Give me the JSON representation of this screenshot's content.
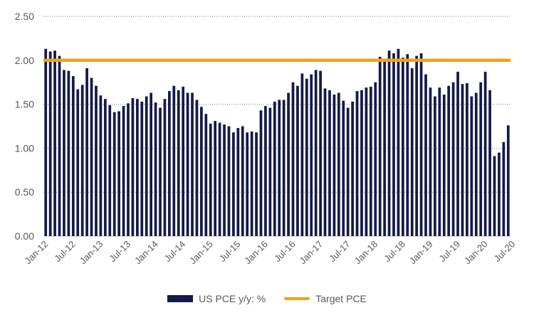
{
  "chart_data": {
    "type": "bar",
    "title": "",
    "xlabel": "",
    "ylabel": "",
    "ylim": [
      0,
      2.5
    ],
    "yticks": [
      "0.00",
      "0.50",
      "1.00",
      "1.50",
      "2.00",
      "2.50"
    ],
    "gridlines": "horizontal-dotted",
    "x_tick_labels": [
      "Jan-12",
      "Jul-12",
      "Jan-13",
      "Jul-13",
      "Jan-14",
      "Jul-14",
      "Jan-15",
      "Jul-15",
      "Jan-16",
      "Jul-16",
      "Jan-17",
      "Jul-17",
      "Jan-18",
      "Jul-18",
      "Jan-19",
      "Jul-19",
      "Jan-20",
      "Jul-20"
    ],
    "x_tick_every_months": 6,
    "start_month": "Jan-12",
    "series": [
      {
        "name": "US PCE y/y: %",
        "kind": "bar",
        "color": "#141a47",
        "values": [
          2.13,
          2.1,
          2.11,
          2.05,
          1.89,
          1.88,
          1.82,
          1.67,
          1.72,
          1.91,
          1.8,
          1.71,
          1.6,
          1.56,
          1.49,
          1.41,
          1.42,
          1.48,
          1.51,
          1.57,
          1.56,
          1.53,
          1.59,
          1.63,
          1.52,
          1.46,
          1.56,
          1.65,
          1.71,
          1.66,
          1.7,
          1.63,
          1.63,
          1.55,
          1.47,
          1.39,
          1.28,
          1.31,
          1.29,
          1.27,
          1.25,
          1.18,
          1.23,
          1.25,
          1.18,
          1.19,
          1.18,
          1.43,
          1.48,
          1.46,
          1.53,
          1.55,
          1.55,
          1.63,
          1.75,
          1.71,
          1.85,
          1.79,
          1.84,
          1.89,
          1.88,
          1.68,
          1.66,
          1.61,
          1.63,
          1.54,
          1.46,
          1.53,
          1.65,
          1.66,
          1.69,
          1.7,
          1.75,
          2.04,
          1.99,
          2.11,
          2.08,
          2.13,
          2.03,
          2.07,
          1.91,
          2.05,
          2.08,
          1.84,
          1.69,
          1.59,
          1.69,
          1.61,
          1.71,
          1.75,
          1.87,
          1.73,
          1.74,
          1.59,
          1.63,
          1.75,
          1.87,
          1.66,
          0.91,
          0.95,
          1.07,
          1.26
        ]
      },
      {
        "name": "Target PCE",
        "kind": "line",
        "color": "#f5a01a",
        "value": 2.0
      }
    ]
  }
}
